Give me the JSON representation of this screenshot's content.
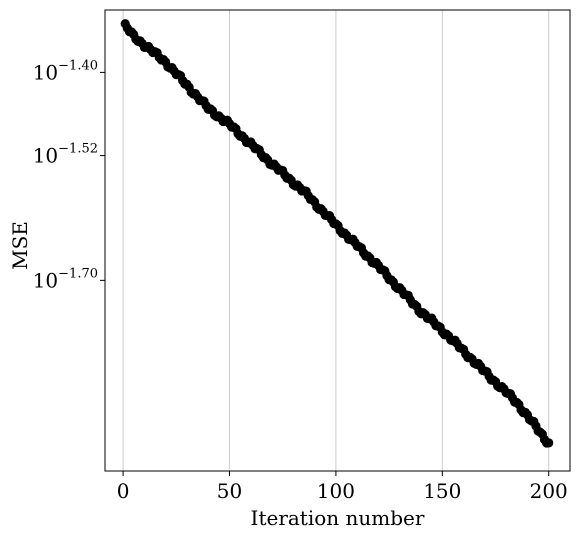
{
  "chart_data": {
    "type": "scatter",
    "title": "",
    "xlabel": "Iteration number",
    "ylabel": "MSE",
    "y_scale": "log10",
    "xlim": [
      -8.5,
      210
    ],
    "ylim_log10": [
      -1.975,
      -1.31
    ],
    "x_ticks": [
      0,
      50,
      100,
      150,
      200
    ],
    "x_tick_labels": [
      "0",
      "50",
      "100",
      "150",
      "200"
    ],
    "y_ticks_log10": [
      -1.4,
      -1.52,
      -1.7
    ],
    "y_tick_labels": [
      {
        "base": "10",
        "exponent": "−1.40"
      },
      {
        "base": "10",
        "exponent": "−1.52"
      },
      {
        "base": "10",
        "exponent": "−1.70"
      }
    ],
    "grid": "vertical only",
    "marker_color": "#000000",
    "grid_color": "#cccccc",
    "series": [
      {
        "x_start": 1,
        "x_end": 200,
        "x_step": 1,
        "log10_y_anchors": [
          {
            "x": 1,
            "y": -1.333
          },
          {
            "x": 5,
            "y": -1.348
          },
          {
            "x": 20,
            "y": -1.385
          },
          {
            "x": 40,
            "y": -1.452
          },
          {
            "x": 50,
            "y": -1.475
          },
          {
            "x": 70,
            "y": -1.532
          },
          {
            "x": 85,
            "y": -1.572
          },
          {
            "x": 100,
            "y": -1.62
          },
          {
            "x": 120,
            "y": -1.68
          },
          {
            "x": 140,
            "y": -1.745
          },
          {
            "x": 150,
            "y": -1.772
          },
          {
            "x": 170,
            "y": -1.832
          },
          {
            "x": 185,
            "y": -1.876
          },
          {
            "x": 200,
            "y": -1.935
          }
        ]
      }
    ]
  }
}
